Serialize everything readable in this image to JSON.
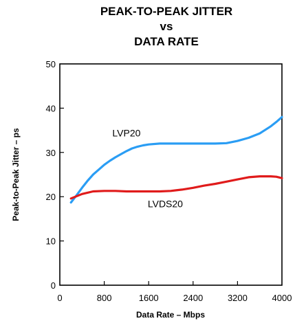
{
  "chart_data": {
    "type": "line",
    "title": [
      "PEAK-TO-PEAK JITTER",
      "vs",
      "DATA RATE"
    ],
    "xlabel": "Data Rate – Mbps",
    "ylabel": "Peak-to-Peak Jitter – ps",
    "xlim": [
      0,
      4000
    ],
    "ylim": [
      0,
      50
    ],
    "xticks": [
      0,
      800,
      1600,
      2400,
      3200,
      4000
    ],
    "yticks": [
      0,
      10,
      20,
      30,
      40,
      50
    ],
    "grid": false,
    "colors": {
      "LVP20": "#2a9df4",
      "LVDS20": "#e01b1b"
    },
    "series": [
      {
        "name": "LVP20",
        "label_at": [
          1200,
          33.6
        ],
        "x": [
          200,
          300,
          400,
          500,
          600,
          700,
          800,
          900,
          1000,
          1100,
          1200,
          1300,
          1400,
          1500,
          1600,
          1800,
          2000,
          2200,
          2400,
          2600,
          2800,
          3000,
          3200,
          3400,
          3600,
          3800,
          3900,
          4000
        ],
        "y": [
          18.7,
          20.3,
          22.0,
          23.6,
          25.0,
          26.1,
          27.2,
          28.1,
          28.9,
          29.6,
          30.3,
          30.9,
          31.3,
          31.6,
          31.8,
          32.0,
          32.0,
          32.0,
          32.0,
          32.0,
          32.0,
          32.1,
          32.6,
          33.3,
          34.3,
          35.9,
          36.9,
          38.0
        ]
      },
      {
        "name": "LVDS20",
        "label_at": [
          1900,
          17.6
        ],
        "x": [
          200,
          400,
          600,
          800,
          1000,
          1200,
          1400,
          1600,
          1800,
          2000,
          2200,
          2400,
          2600,
          2800,
          3000,
          3200,
          3400,
          3600,
          3800,
          3900,
          4000
        ],
        "y": [
          19.6,
          20.6,
          21.2,
          21.3,
          21.3,
          21.2,
          21.2,
          21.2,
          21.2,
          21.3,
          21.6,
          22.0,
          22.5,
          22.9,
          23.4,
          23.9,
          24.4,
          24.6,
          24.6,
          24.5,
          24.2
        ]
      }
    ]
  }
}
